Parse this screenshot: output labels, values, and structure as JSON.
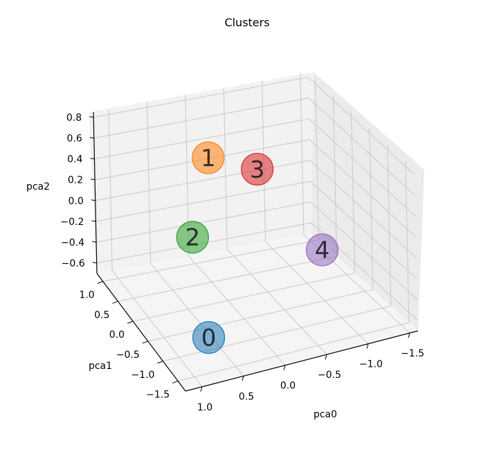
{
  "chart_data": {
    "type": "scatter",
    "projection": "3d",
    "title": "Clusters",
    "xlabel": "pca0",
    "ylabel": "pca1",
    "zlabel": "pca2",
    "x_ticks": [
      {
        "value": 1.0,
        "label": "1.0"
      },
      {
        "value": 0.5,
        "label": "0.5"
      },
      {
        "value": 0.0,
        "label": "0.0"
      },
      {
        "value": -0.5,
        "label": "−0.5"
      },
      {
        "value": -1.0,
        "label": "−1.0"
      },
      {
        "value": -1.5,
        "label": "−1.5"
      }
    ],
    "y_ticks": [
      {
        "value": -1.5,
        "label": "−1.5"
      },
      {
        "value": -1.0,
        "label": "−1.0"
      },
      {
        "value": -0.5,
        "label": "−0.5"
      },
      {
        "value": 0.0,
        "label": "0.0"
      },
      {
        "value": 0.5,
        "label": "0.5"
      },
      {
        "value": 1.0,
        "label": "1.0"
      }
    ],
    "z_ticks": [
      {
        "value": 0.8,
        "label": "0.8"
      },
      {
        "value": 0.6,
        "label": "0.6"
      },
      {
        "value": 0.4,
        "label": "0.4"
      },
      {
        "value": 0.2,
        "label": "0.2"
      },
      {
        "value": 0.0,
        "label": "0.0"
      },
      {
        "value": -0.2,
        "label": "−0.2"
      },
      {
        "value": -0.4,
        "label": "−0.4"
      },
      {
        "value": -0.6,
        "label": "−0.6"
      }
    ],
    "xlim": [
      -1.6,
      1.2
    ],
    "ylim": [
      -1.75,
      1.2
    ],
    "zlim": [
      -0.7,
      0.85
    ],
    "grid": true,
    "points": [
      {
        "label": "0",
        "x": 0.8,
        "y": -1.45,
        "z": -0.38,
        "color": "#1f77b4"
      },
      {
        "label": "1",
        "x": 0.25,
        "y": -0.1,
        "z": 0.75,
        "color": "#ff7f0e"
      },
      {
        "label": "2",
        "x": 0.75,
        "y": -0.85,
        "z": 0.35,
        "color": "#2ca02c"
      },
      {
        "label": "3",
        "x": -0.3,
        "y": -0.25,
        "z": 0.6,
        "color": "#d62728"
      },
      {
        "label": "4",
        "x": -1.35,
        "y": 0.35,
        "z": -0.55,
        "color": "#9467bd"
      }
    ]
  }
}
